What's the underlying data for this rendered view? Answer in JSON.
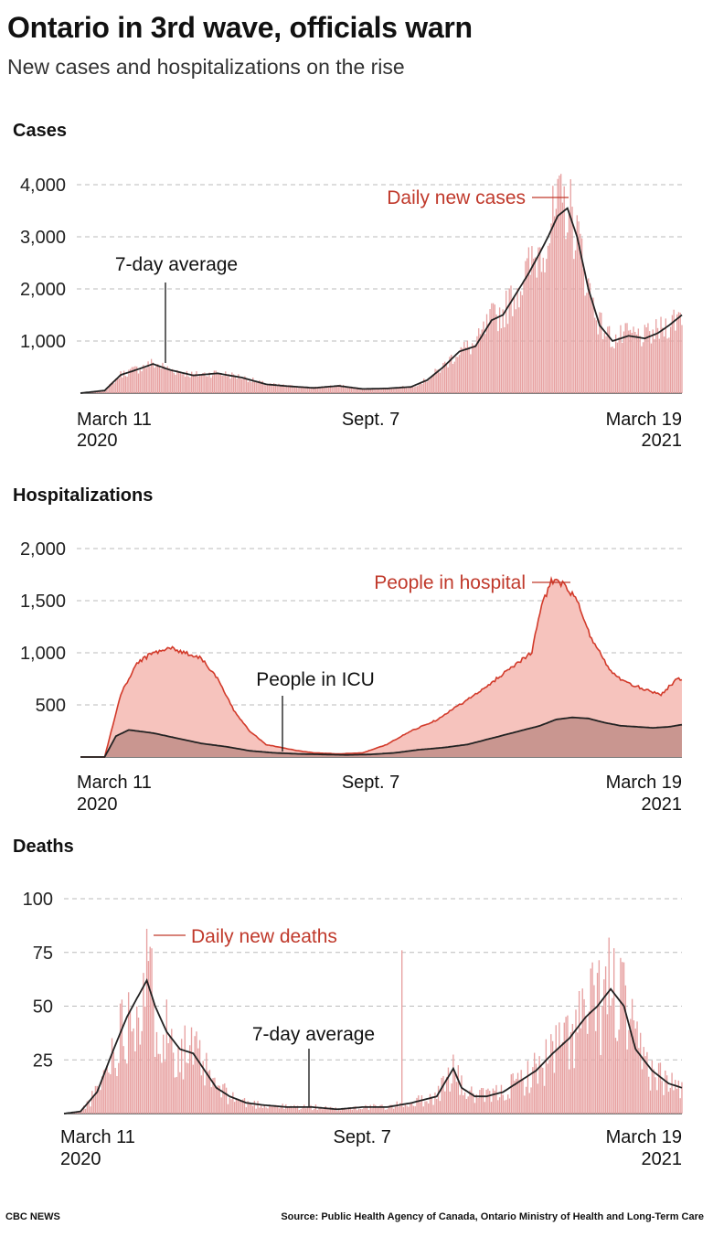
{
  "title": "Ontario in 3rd wave, officials warn",
  "subtitle": "New cases and hospitalizations on the rise",
  "footer": {
    "brand": "CBC NEWS",
    "source": "Source: Public Health Agency of Canada, Ontario Ministry of Health and Long-Term Care"
  },
  "colors": {
    "bar_red": "#e7a1a1",
    "label_red": "#c0392b",
    "hospital_fill": "#f6c3bd",
    "hospital_line": "#d23a2a",
    "icu_fill": "#c99690",
    "line_dark": "#222222",
    "grid": "#bbbbbb"
  },
  "chart_data": [
    {
      "type": "bar",
      "title": "Cases",
      "x_tick_labels": [
        {
          "line1": "March 11",
          "line2": "2020"
        },
        {
          "line1": "Sept. 7",
          "line2": ""
        },
        {
          "line1": "March 19",
          "line2": "2021"
        }
      ],
      "x_ticks_days": [
        0,
        180,
        373
      ],
      "x_range_days": [
        0,
        373
      ],
      "yticks": [
        1000,
        2000,
        3000,
        4000
      ],
      "ytick_labels": [
        "1,000",
        "2,000",
        "3,000",
        "4,000"
      ],
      "ylim": [
        0,
        4000
      ],
      "grid": true,
      "series": [
        {
          "name": "Daily new cases",
          "style": "bars"
        },
        {
          "name": "7-day average",
          "style": "line"
        }
      ],
      "curve_keypoints": {
        "day": [
          0,
          15,
          25,
          35,
          45,
          55,
          70,
          85,
          100,
          115,
          130,
          145,
          160,
          175,
          190,
          205,
          215,
          225,
          235,
          245,
          255,
          262,
          270,
          278,
          285,
          290,
          296,
          302,
          308,
          315,
          322,
          330,
          340,
          350,
          358,
          365,
          373
        ],
        "value": [
          0,
          50,
          350,
          450,
          560,
          450,
          340,
          380,
          300,
          170,
          130,
          100,
          140,
          80,
          90,
          120,
          250,
          500,
          800,
          900,
          1400,
          1500,
          1900,
          2300,
          2700,
          3000,
          3400,
          3550,
          3000,
          2000,
          1300,
          1000,
          1100,
          1050,
          1150,
          1300,
          1500
        ]
      },
      "annotations": [
        "Daily new cases",
        "7-day average"
      ]
    },
    {
      "type": "area",
      "title": "Hospitalizations",
      "x_tick_labels": [
        {
          "line1": "March 11",
          "line2": "2020"
        },
        {
          "line1": "Sept. 7",
          "line2": ""
        },
        {
          "line1": "March 19",
          "line2": "2021"
        }
      ],
      "x_ticks_days": [
        0,
        180,
        373
      ],
      "x_range_days": [
        0,
        373
      ],
      "yticks": [
        500,
        1000,
        1500,
        2000
      ],
      "ytick_labels": [
        "500",
        "1,000",
        "1,500",
        "2,000"
      ],
      "ylim": [
        0,
        2000
      ],
      "grid": true,
      "series": [
        {
          "name": "People in hospital",
          "day": [
            0,
            15,
            20,
            25,
            35,
            45,
            55,
            65,
            75,
            85,
            95,
            105,
            115,
            125,
            135,
            145,
            160,
            175,
            190,
            205,
            220,
            235,
            250,
            262,
            275,
            280,
            285,
            292,
            300,
            308,
            315,
            322,
            330,
            340,
            350,
            360,
            370,
            373
          ],
          "value": [
            0,
            0,
            300,
            600,
            900,
            1000,
            1050,
            1000,
            950,
            750,
            450,
            250,
            120,
            90,
            60,
            40,
            30,
            40,
            120,
            250,
            350,
            500,
            650,
            800,
            950,
            1000,
            1400,
            1700,
            1650,
            1500,
            1200,
            1000,
            800,
            700,
            650,
            600,
            750,
            750
          ]
        },
        {
          "name": "People in ICU",
          "day": [
            0,
            15,
            22,
            30,
            45,
            60,
            75,
            90,
            105,
            120,
            135,
            150,
            165,
            180,
            195,
            210,
            225,
            240,
            255,
            270,
            285,
            295,
            305,
            315,
            325,
            335,
            345,
            355,
            365,
            373
          ],
          "value": [
            0,
            0,
            200,
            260,
            230,
            180,
            130,
            100,
            60,
            40,
            30,
            25,
            20,
            25,
            40,
            70,
            90,
            120,
            180,
            240,
            300,
            360,
            380,
            370,
            330,
            300,
            290,
            280,
            290,
            310
          ]
        }
      ],
      "annotations": [
        "People in hospital",
        "People in ICU"
      ]
    },
    {
      "type": "bar",
      "title": "Deaths",
      "x_tick_labels": [
        {
          "line1": "March 11",
          "line2": "2020"
        },
        {
          "line1": "Sept. 7",
          "line2": ""
        },
        {
          "line1": "March 19",
          "line2": "2021"
        }
      ],
      "x_ticks_days": [
        0,
        180,
        373
      ],
      "x_range_days": [
        0,
        373
      ],
      "yticks": [
        25,
        50,
        75,
        100
      ],
      "ytick_labels": [
        "25",
        "50",
        "75",
        "100"
      ],
      "ylim": [
        0,
        100
      ],
      "grid": true,
      "series": [
        {
          "name": "Daily new deaths",
          "style": "bars"
        },
        {
          "name": "7-day average",
          "style": "line"
        }
      ],
      "curve_keypoints": {
        "day": [
          0,
          10,
          20,
          30,
          38,
          45,
          50,
          55,
          62,
          70,
          78,
          85,
          92,
          100,
          110,
          120,
          135,
          150,
          165,
          180,
          195,
          210,
          225,
          235,
          240,
          248,
          255,
          265,
          275,
          285,
          295,
          305,
          315,
          322,
          330,
          338,
          345,
          355,
          365,
          373
        ],
        "value": [
          0,
          1,
          10,
          30,
          45,
          55,
          62,
          50,
          38,
          30,
          28,
          20,
          12,
          8,
          5,
          4,
          3,
          3,
          2,
          3,
          3,
          5,
          8,
          21,
          12,
          8,
          8,
          10,
          15,
          20,
          28,
          35,
          45,
          50,
          58,
          50,
          30,
          20,
          14,
          12
        ]
      },
      "annotations": [
        "Daily new deaths",
        "7-day average"
      ]
    }
  ]
}
